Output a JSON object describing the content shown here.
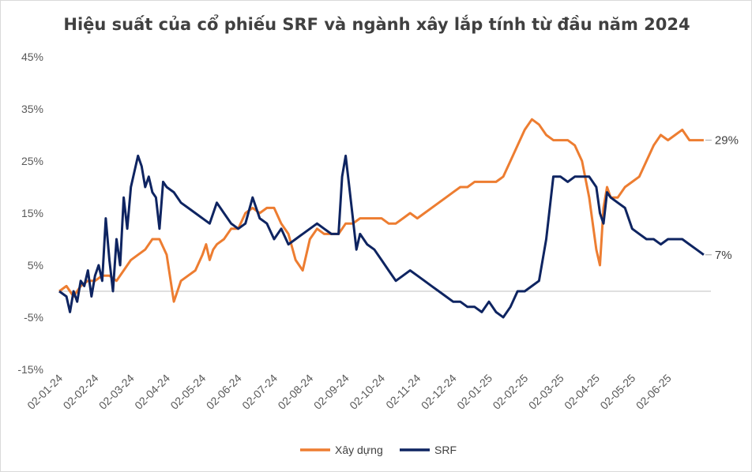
{
  "chart_data": {
    "type": "line",
    "title": "Hiệu suất của cổ phiếu SRF và ngành xây lắp tính từ đầu năm 2024",
    "xlabel": "",
    "ylabel": "",
    "ylim": [
      -15,
      45
    ],
    "yticks": [
      45,
      35,
      25,
      15,
      5,
      -5,
      -15
    ],
    "ytick_labels": [
      "45%",
      "35%",
      "25%",
      "15%",
      "5%",
      "-5%",
      "-15%"
    ],
    "xlim": [
      0,
      18.2
    ],
    "xtick_labels": [
      "02-01-24",
      "02-02-24",
      "02-03-24",
      "02-04-24",
      "02-05-24",
      "02-06-24",
      "02-07-24",
      "02-08-24",
      "02-09-24",
      "02-10-24",
      "02-11-24",
      "02-12-24",
      "02-01-25",
      "02-02-25",
      "02-03-25",
      "02-04-25",
      "02-05-25",
      "02-06-25"
    ],
    "legend_position": "bottom",
    "end_labels": [
      "29%",
      "7%"
    ],
    "series": [
      {
        "name": "Xây dựng",
        "color": "#ED7D31",
        "x": [
          0,
          0.2,
          0.4,
          0.6,
          0.8,
          1.0,
          1.2,
          1.4,
          1.6,
          1.8,
          2.0,
          2.2,
          2.4,
          2.6,
          2.8,
          3.0,
          3.2,
          3.4,
          3.6,
          3.8,
          4.0,
          4.1,
          4.2,
          4.3,
          4.4,
          4.6,
          4.8,
          5.0,
          5.2,
          5.4,
          5.6,
          5.8,
          6.0,
          6.2,
          6.4,
          6.6,
          6.8,
          7.0,
          7.2,
          7.4,
          7.6,
          7.8,
          7.9,
          8.0,
          8.2,
          8.4,
          8.6,
          8.8,
          9.0,
          9.2,
          9.4,
          9.6,
          9.8,
          10.0,
          10.2,
          10.4,
          10.6,
          10.8,
          11.0,
          11.2,
          11.4,
          11.6,
          11.8,
          12.0,
          12.2,
          12.4,
          12.6,
          12.8,
          13.0,
          13.2,
          13.4,
          13.6,
          13.8,
          14.0,
          14.2,
          14.4,
          14.6,
          14.8,
          15.0,
          15.1,
          15.2,
          15.3,
          15.4,
          15.6,
          15.8,
          16.0,
          16.2,
          16.4,
          16.6,
          16.8,
          17.0,
          17.2,
          17.4,
          17.6,
          17.8,
          18.0
        ],
        "values": [
          0,
          1,
          -1,
          1,
          2,
          2,
          3,
          3,
          2,
          4,
          6,
          7,
          8,
          10,
          10,
          7,
          -2,
          2,
          3,
          4,
          7,
          9,
          6,
          8,
          9,
          10,
          12,
          12,
          15,
          16,
          15,
          16,
          16,
          13,
          11,
          6,
          4,
          10,
          12,
          11,
          11,
          11,
          12,
          13,
          13,
          14,
          14,
          14,
          14,
          13,
          13,
          14,
          15,
          14,
          15,
          16,
          17,
          18,
          19,
          20,
          20,
          21,
          21,
          21,
          21,
          22,
          25,
          28,
          31,
          33,
          32,
          30,
          29,
          29,
          29,
          28,
          25,
          18,
          8,
          5,
          16,
          20,
          18,
          18,
          20,
          21,
          22,
          25,
          28,
          30,
          29,
          30,
          31,
          29,
          29,
          29
        ]
      },
      {
        "name": "SRF",
        "color": "#0E2461",
        "x": [
          0,
          0.2,
          0.3,
          0.4,
          0.5,
          0.6,
          0.7,
          0.8,
          0.9,
          1.0,
          1.1,
          1.2,
          1.3,
          1.4,
          1.5,
          1.6,
          1.7,
          1.8,
          1.9,
          2.0,
          2.1,
          2.2,
          2.3,
          2.4,
          2.5,
          2.6,
          2.7,
          2.8,
          2.9,
          3.0,
          3.2,
          3.4,
          3.6,
          3.8,
          4.0,
          4.2,
          4.4,
          4.6,
          4.8,
          5.0,
          5.2,
          5.4,
          5.6,
          5.8,
          6.0,
          6.2,
          6.4,
          6.6,
          6.8,
          7.0,
          7.2,
          7.4,
          7.6,
          7.8,
          7.9,
          8.0,
          8.1,
          8.2,
          8.3,
          8.4,
          8.6,
          8.8,
          9.0,
          9.2,
          9.4,
          9.6,
          9.8,
          10.0,
          10.2,
          10.4,
          10.6,
          10.8,
          11.0,
          11.2,
          11.4,
          11.6,
          11.8,
          12.0,
          12.2,
          12.4,
          12.6,
          12.8,
          13.0,
          13.2,
          13.4,
          13.6,
          13.8,
          14.0,
          14.2,
          14.4,
          14.6,
          14.8,
          15.0,
          15.1,
          15.2,
          15.3,
          15.4,
          15.6,
          15.8,
          16.0,
          16.2,
          16.4,
          16.6,
          16.8,
          17.0,
          17.2,
          17.4,
          17.6,
          17.8,
          18.0
        ],
        "values": [
          0,
          -1,
          -4,
          0,
          -2,
          2,
          1,
          4,
          -1,
          3,
          5,
          2,
          14,
          6,
          0,
          10,
          5,
          18,
          12,
          20,
          23,
          26,
          24,
          20,
          22,
          19,
          18,
          12,
          21,
          20,
          19,
          17,
          16,
          15,
          14,
          13,
          17,
          15,
          13,
          12,
          13,
          18,
          14,
          13,
          10,
          12,
          9,
          10,
          11,
          12,
          13,
          12,
          11,
          11,
          22,
          26,
          20,
          14,
          8,
          11,
          9,
          8,
          6,
          4,
          2,
          3,
          4,
          3,
          2,
          1,
          0,
          -1,
          -2,
          -2,
          -3,
          -3,
          -4,
          -2,
          -4,
          -5,
          -3,
          0,
          0,
          1,
          2,
          10,
          22,
          22,
          21,
          22,
          22,
          22,
          20,
          15,
          13,
          19,
          18,
          17,
          16,
          12,
          11,
          10,
          10,
          9,
          10,
          10,
          10,
          9,
          8,
          7
        ]
      }
    ]
  }
}
